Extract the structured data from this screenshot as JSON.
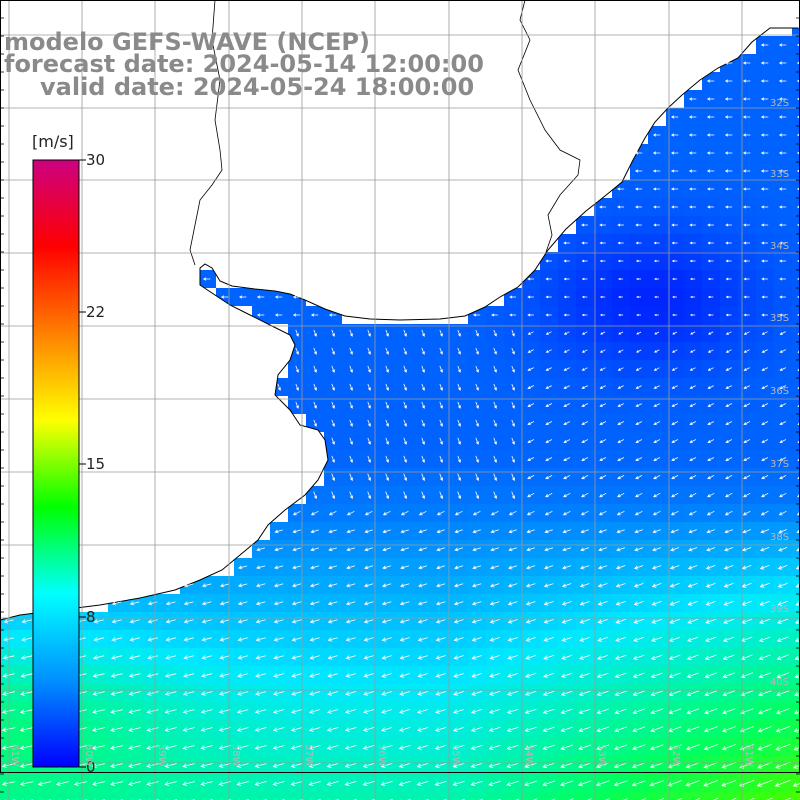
{
  "title": {
    "line1": "modelo GEFS-WAVE (NCEP)",
    "line2": "forecast date: 2024-05-14 12:00:00",
    "line3": "valid date: 2024-05-24 18:00:00"
  },
  "colorbar": {
    "unit": "[m/s]",
    "ticks": [
      "30",
      "22",
      "15",
      "8",
      "0"
    ],
    "stops": [
      "#0000ff",
      "#0090ff",
      "#00ffff",
      "#00ff00",
      "#ffff00",
      "#ff8000",
      "#ff0000",
      "#cc0080"
    ]
  },
  "grid": {
    "lat_labels": [
      "32S",
      "33S",
      "34S",
      "35S",
      "36S",
      "37S",
      "38S",
      "39S",
      "40S"
    ],
    "lon_labels": [
      "61W",
      "60W",
      "59W",
      "58W",
      "57W",
      "56W",
      "55W",
      "54W",
      "53W",
      "52W",
      "51W"
    ]
  },
  "colors": {
    "land": "#ffffff",
    "coast": "#000000",
    "grid": "#9a9a9a",
    "arrow": "#ffffff",
    "title": "#8a8a8a"
  }
}
